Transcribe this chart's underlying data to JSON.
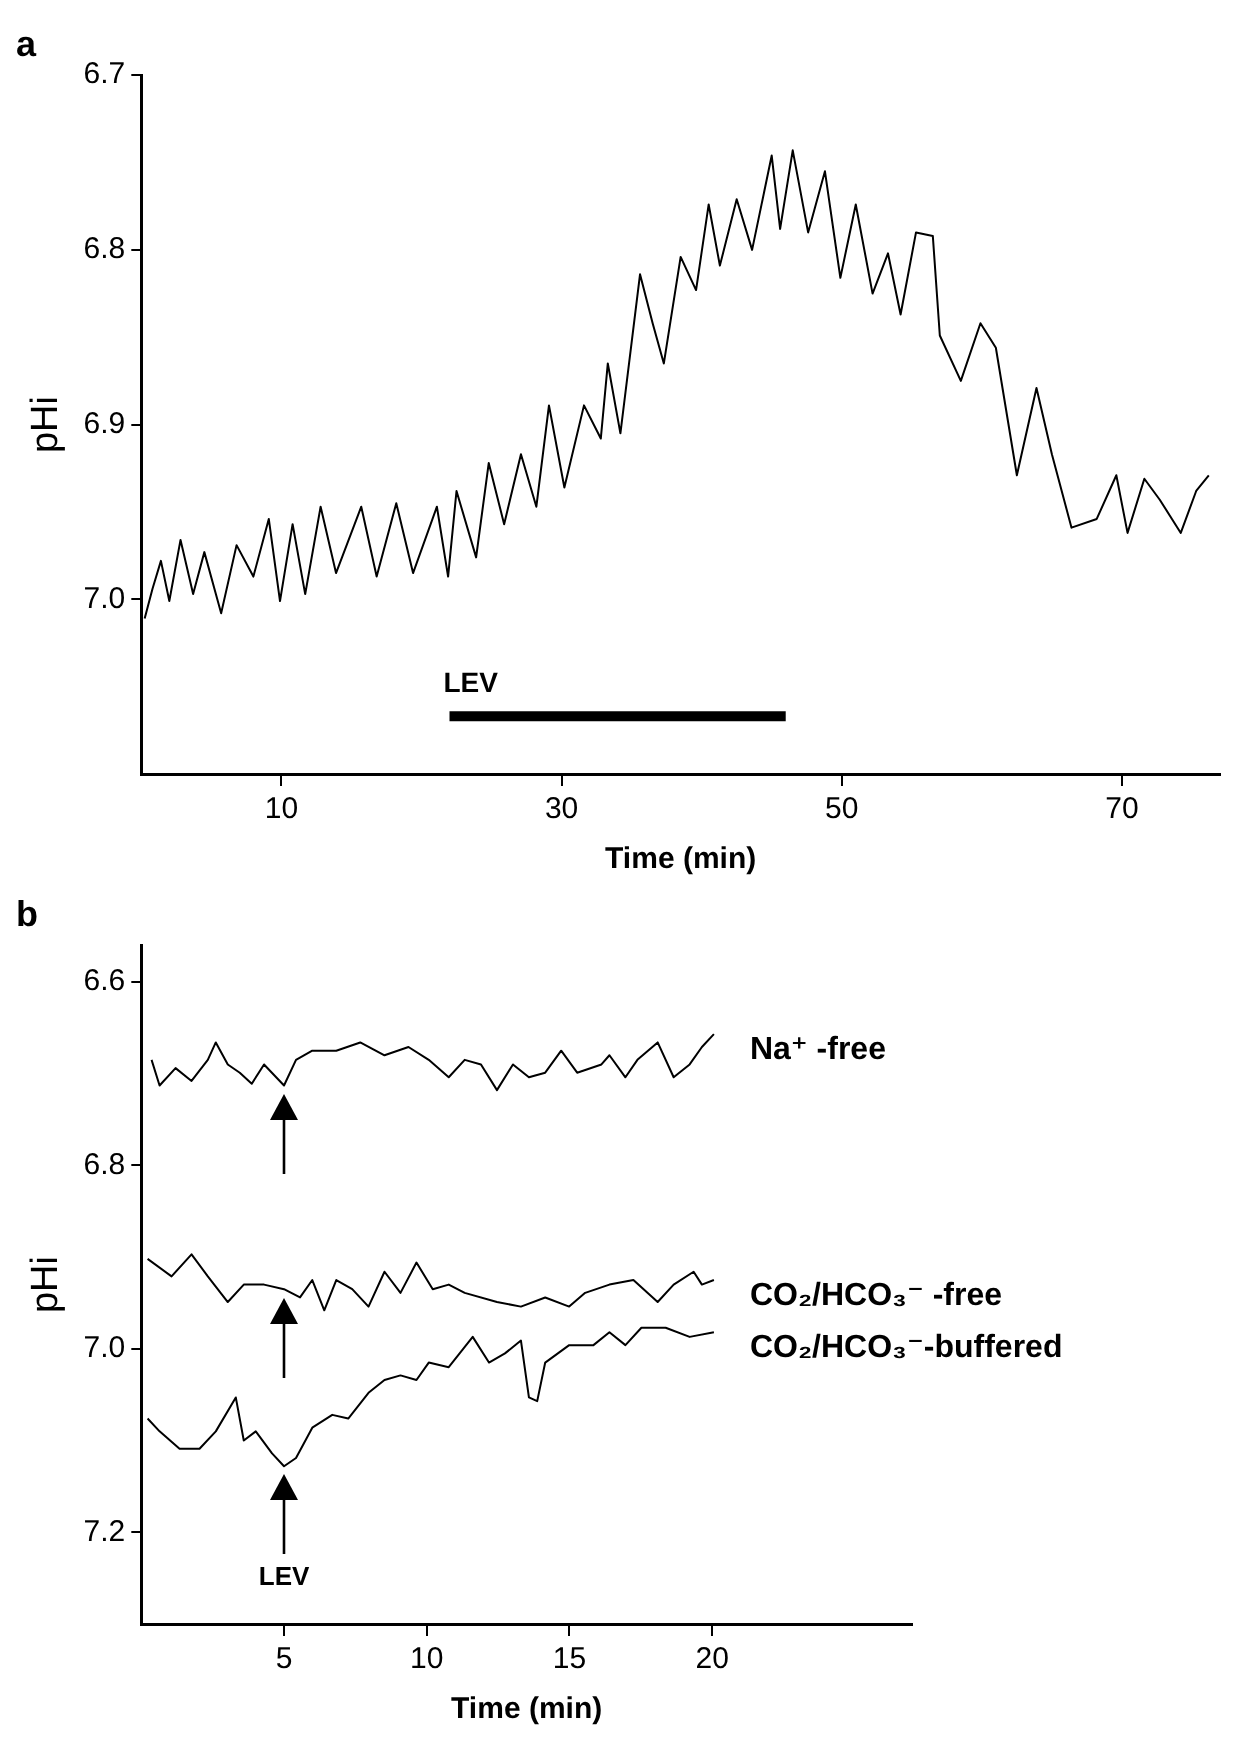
{
  "chart_data": [
    {
      "type": "line",
      "title": "a",
      "xlabel": "Time (min)",
      "ylabel": "pHi",
      "xlim": [
        0,
        77
      ],
      "xticks": [
        10,
        30,
        50,
        70
      ],
      "ylim": [
        7.1,
        6.7
      ],
      "yticks": [
        6.7,
        6.8,
        6.9,
        {
          "value": 7,
          "label": "7.0"
        }
      ],
      "grid": false,
      "legend": false,
      "annotations": [
        {
          "text": "LEV",
          "x": 22,
          "y": 7.067
        }
      ],
      "series": [
        {
          "type": "line",
          "color": "#000000",
          "x": [
            22,
            46
          ],
          "values": [
            7.067,
            7.067
          ]
        },
        {
          "color": "#000000",
          "x": [
            0.24,
            0.8,
            1.4,
            2.0,
            2.8,
            3.7,
            4.5,
            5.7,
            6.8,
            8.0,
            9.1,
            9.9,
            10.8,
            11.7,
            12.8,
            13.9,
            15.7,
            16.8,
            18.2,
            19.4,
            21.1,
            21.9,
            22.5,
            23.9,
            24.8,
            25.9,
            27.1,
            28.2,
            29.1,
            30.2,
            31.6,
            32.8,
            33.3,
            34.2,
            35.6,
            36.5,
            37.3,
            38.5,
            39.6,
            40.5,
            41.3,
            42.5,
            43.6,
            45.0,
            45.6,
            46.5,
            47.6,
            48.8,
            49.9,
            51.0,
            52.2,
            53.3,
            54.2,
            55.3,
            56.5,
            57.0,
            58.5,
            59.9,
            61.0,
            62.5,
            63.9,
            65.0,
            66.4,
            68.2,
            69.6,
            70.4,
            71.6,
            72.7,
            74.2,
            75.3,
            76.2
          ],
          "values": [
            7.011,
            6.994,
            6.978,
            7.001,
            6.966,
            6.997,
            6.973,
            7.008,
            6.969,
            6.987,
            6.954,
            7.001,
            6.957,
            6.997,
            6.947,
            6.985,
            6.947,
            6.987,
            6.945,
            6.985,
            6.947,
            6.987,
            6.938,
            6.976,
            6.922,
            6.957,
            6.917,
            6.947,
            6.889,
            6.936,
            6.889,
            6.908,
            6.865,
            6.905,
            6.814,
            6.842,
            6.865,
            6.804,
            6.823,
            6.774,
            6.809,
            6.771,
            6.8,
            6.746,
            6.788,
            6.743,
            6.79,
            6.755,
            6.816,
            6.774,
            6.825,
            6.802,
            6.837,
            6.79,
            6.792,
            6.849,
            6.875,
            6.842,
            6.856,
            6.929,
            6.879,
            6.917,
            6.959,
            6.954,
            6.929,
            6.962,
            6.931,
            6.943,
            6.962,
            6.938,
            6.929
          ]
        }
      ]
    },
    {
      "type": "line",
      "title": "b",
      "xlabel": "Time (min)",
      "ylabel": "pHi",
      "xlim": [
        0,
        27
      ],
      "xticks": [
        5,
        10,
        15,
        20
      ],
      "ylim": [
        7.3,
        6.56
      ],
      "yticks": [
        6.6,
        6.8,
        {
          "value": 7,
          "label": "7.0"
        },
        7.2
      ],
      "grid": false,
      "legend": false,
      "annotations": [
        "LEV"
      ],
      "series": [
        {
          "name": "Na⁺ -free",
          "color": "#000000",
          "x": [
            0.36,
            0.64,
            1.2,
            1.76,
            2.33,
            2.61,
            3.03,
            3.45,
            3.87,
            4.3,
            5.0,
            5.42,
            5.99,
            6.83,
            7.67,
            8.52,
            9.36,
            10.07,
            10.77,
            11.33,
            11.9,
            12.46,
            13.02,
            13.58,
            14.15,
            14.71,
            15.27,
            16.12,
            16.4,
            16.96,
            17.38,
            18.09,
            18.65,
            19.21,
            19.64,
            20.06
          ],
          "values": [
            6.685,
            6.713,
            6.694,
            6.708,
            6.685,
            6.666,
            6.69,
            6.699,
            6.711,
            6.69,
            6.713,
            6.685,
            6.675,
            6.675,
            6.666,
            6.68,
            6.671,
            6.685,
            6.704,
            6.685,
            6.69,
            6.718,
            6.69,
            6.704,
            6.699,
            6.675,
            6.699,
            6.69,
            6.68,
            6.704,
            6.685,
            6.666,
            6.704,
            6.69,
            6.671,
            6.657
          ]
        },
        {
          "name": "CO₂/HCO₃⁻ -free",
          "color": "#000000",
          "x": [
            0.22,
            1.06,
            1.76,
            2.33,
            3.03,
            3.59,
            4.3,
            5.0,
            5.56,
            5.99,
            6.41,
            6.83,
            7.39,
            7.96,
            8.52,
            9.08,
            9.64,
            10.21,
            10.77,
            11.33,
            12.46,
            13.3,
            14.15,
            14.99,
            15.55,
            16.4,
            17.24,
            18.09,
            18.65,
            19.35,
            19.64,
            20.06
          ],
          "values": [
            6.902,
            6.921,
            6.897,
            6.921,
            6.949,
            6.93,
            6.93,
            6.935,
            6.944,
            6.925,
            6.958,
            6.925,
            6.935,
            6.954,
            6.916,
            6.939,
            6.906,
            6.935,
            6.93,
            6.939,
            6.949,
            6.954,
            6.944,
            6.954,
            6.939,
            6.93,
            6.925,
            6.949,
            6.93,
            6.916,
            6.93,
            6.925
          ]
        },
        {
          "name": "CO₂/HCO₃⁻-buffered",
          "color": "#000000",
          "x": [
            0.22,
            0.64,
            1.34,
            2.04,
            2.61,
            3.31,
            3.59,
            4.01,
            4.58,
            5.0,
            5.42,
            5.99,
            6.69,
            7.25,
            7.96,
            8.52,
            9.08,
            9.64,
            10.07,
            10.77,
            11.61,
            12.18,
            12.74,
            13.3,
            13.58,
            13.87,
            14.15,
            14.99,
            15.84,
            16.4,
            16.96,
            17.52,
            18.37,
            19.21,
            20.06
          ],
          "values": [
            7.076,
            7.09,
            7.109,
            7.109,
            7.09,
            7.053,
            7.1,
            7.09,
            7.114,
            7.128,
            7.119,
            7.086,
            7.072,
            7.076,
            7.048,
            7.034,
            7.029,
            7.034,
            7.015,
            7.02,
            6.987,
            7.015,
            7.005,
            6.991,
            7.053,
            7.057,
            7.015,
            6.996,
            6.996,
            6.982,
            6.996,
            6.977,
            6.977,
            6.987,
            6.982
          ]
        }
      ]
    }
  ]
}
